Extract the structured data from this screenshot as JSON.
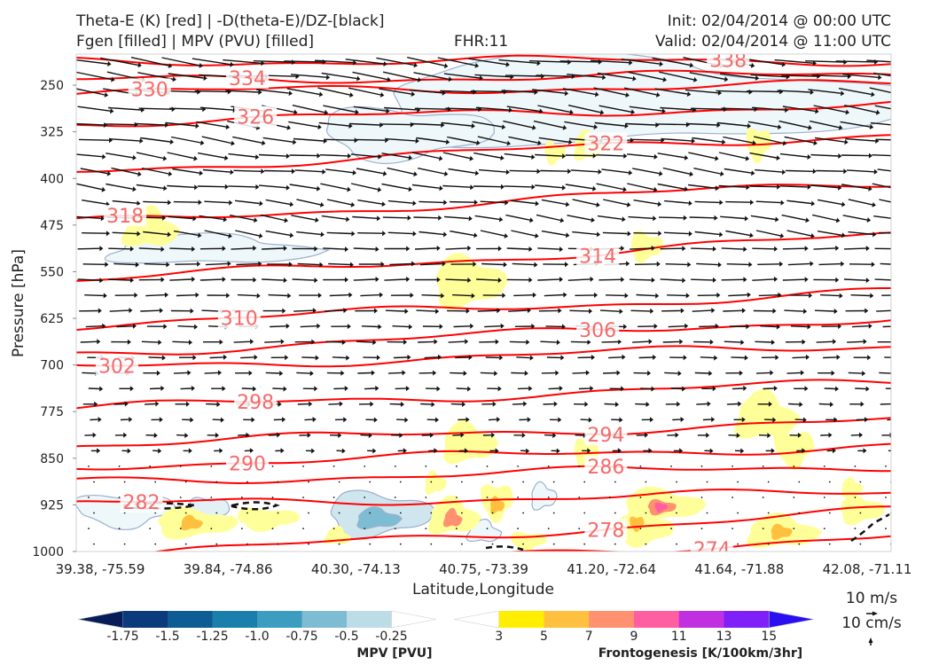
{
  "header": {
    "title_line1": "Theta-E (K) [red] | -D(theta-E)/DZ-[black]",
    "title_line2": "Fgen [filled] | MPV (PVU) [filled]",
    "fhr": "FHR:11",
    "init": "Init: 02/04/2014 @ 00:00 UTC",
    "valid": "Valid: 02/04/2014 @ 11:00 UTC"
  },
  "colors": {
    "theta_e": "#ff0000",
    "theta_e_label": "#f46a6a",
    "wind_vector": "#111111",
    "mpv_contour": "#9db0cc",
    "mpv_fill_light": "#eef7fa",
    "fgen_fill_light": "#ffff99"
  },
  "chart_data": {
    "type": "cross-section",
    "xlabel": "Latitude,Longitude",
    "ylabel": "Pressure [hPa]",
    "x_ticks": [
      "39.38, -75.59",
      "39.84, -74.86",
      "40.30, -74.13",
      "40.75, -73.39",
      "41.20, -72.64",
      "41.64, -71.88",
      "42.08, -71.11"
    ],
    "y_axis": {
      "scale": "linear",
      "inverted": true,
      "ylim": [
        1000,
        200
      ]
    },
    "y_ticks": [
      250,
      325,
      400,
      475,
      550,
      625,
      700,
      775,
      850,
      925,
      1000
    ],
    "theta_e_contour_labels": [
      "338",
      "334",
      "330",
      "326",
      "322",
      "318",
      "314",
      "310",
      "306",
      "302",
      "298",
      "294",
      "290",
      "286",
      "282",
      "278",
      "274"
    ],
    "theta_e_contours": [
      {
        "level": 274,
        "p_left": 1040,
        "p_right": 975,
        "label_x": 0.78
      },
      {
        "level": 278,
        "p_left": 1010,
        "p_right": 935,
        "label_x": 0.65
      },
      {
        "level": 282,
        "p_left": 925,
        "p_right": 905,
        "label_x": 0.08
      },
      {
        "level": 286,
        "p_left": 888,
        "p_right": 862,
        "label_x": 0.65
      },
      {
        "level": 290,
        "p_left": 862,
        "p_right": 830,
        "label_x": 0.21
      },
      {
        "level": 294,
        "p_left": 828,
        "p_right": 790,
        "label_x": 0.65
      },
      {
        "level": 298,
        "p_left": 770,
        "p_right": 728,
        "label_x": 0.22
      },
      {
        "level": 302,
        "p_left": 705,
        "p_right": 668,
        "label_x": 0.05
      },
      {
        "level": 306,
        "p_left": 682,
        "p_right": 624,
        "label_x": 0.64
      },
      {
        "level": 310,
        "p_left": 635,
        "p_right": 582,
        "label_x": 0.2
      },
      {
        "level": 314,
        "p_left": 565,
        "p_right": 492,
        "label_x": 0.64
      },
      {
        "level": 318,
        "p_left": 472,
        "p_right": 405,
        "label_x": 0.06
      },
      {
        "level": 322,
        "p_left": 388,
        "p_right": 328,
        "label_x": 0.65
      },
      {
        "level": 326,
        "p_left": 310,
        "p_right": 282,
        "label_x": 0.22
      },
      {
        "level": 330,
        "p_left": 262,
        "p_right": 249,
        "label_x": 0.09
      },
      {
        "level": 334,
        "p_left": 243,
        "p_right": 232,
        "label_x": 0.21
      },
      {
        "level": 338,
        "p_left": 212,
        "p_right": 210,
        "label_x": 0.8
      }
    ],
    "wind_levels_hpa": [
      212,
      235,
      260,
      288,
      313,
      338,
      363,
      388,
      413,
      438,
      463,
      488,
      513,
      538,
      563,
      588,
      613,
      638,
      663,
      688,
      713,
      738,
      763,
      788,
      813,
      838,
      863,
      888,
      913,
      938,
      963,
      988
    ],
    "wind_speed_by_level_ms": [
      14,
      13,
      12,
      12,
      11,
      11,
      10,
      10,
      10,
      9,
      9,
      9,
      8,
      8,
      8,
      7,
      7,
      6,
      6,
      5,
      5,
      4,
      4,
      3,
      3,
      2,
      1,
      1,
      0.5,
      0.5,
      0.5,
      0.3
    ],
    "mpv_colorbar": {
      "label": "MPV [PVU]",
      "tick_labels": [
        "-1.75",
        "-1.5",
        "-1.25",
        "-1.0",
        "-0.75",
        "-0.5",
        "-0.25"
      ],
      "colors": [
        "#061d58",
        "#0b3b7c",
        "#0d5c95",
        "#1a7fab",
        "#3c9dc1",
        "#7ebcd4",
        "#bcdce6",
        "#ffffff"
      ]
    },
    "fgen_colorbar": {
      "label": "Frontogenesis [K/100km/3hr]",
      "tick_labels": [
        "3",
        "5",
        "7",
        "9",
        "11",
        "13",
        "15"
      ],
      "colors": [
        "#ffffff",
        "#ffee00",
        "#ffc040",
        "#ff9070",
        "#ff5ea0",
        "#c030e0",
        "#8020f8",
        "#2a10f0"
      ]
    },
    "vector_key": {
      "horizontal": "10 m/s",
      "vertical": "10 cm/s"
    }
  }
}
